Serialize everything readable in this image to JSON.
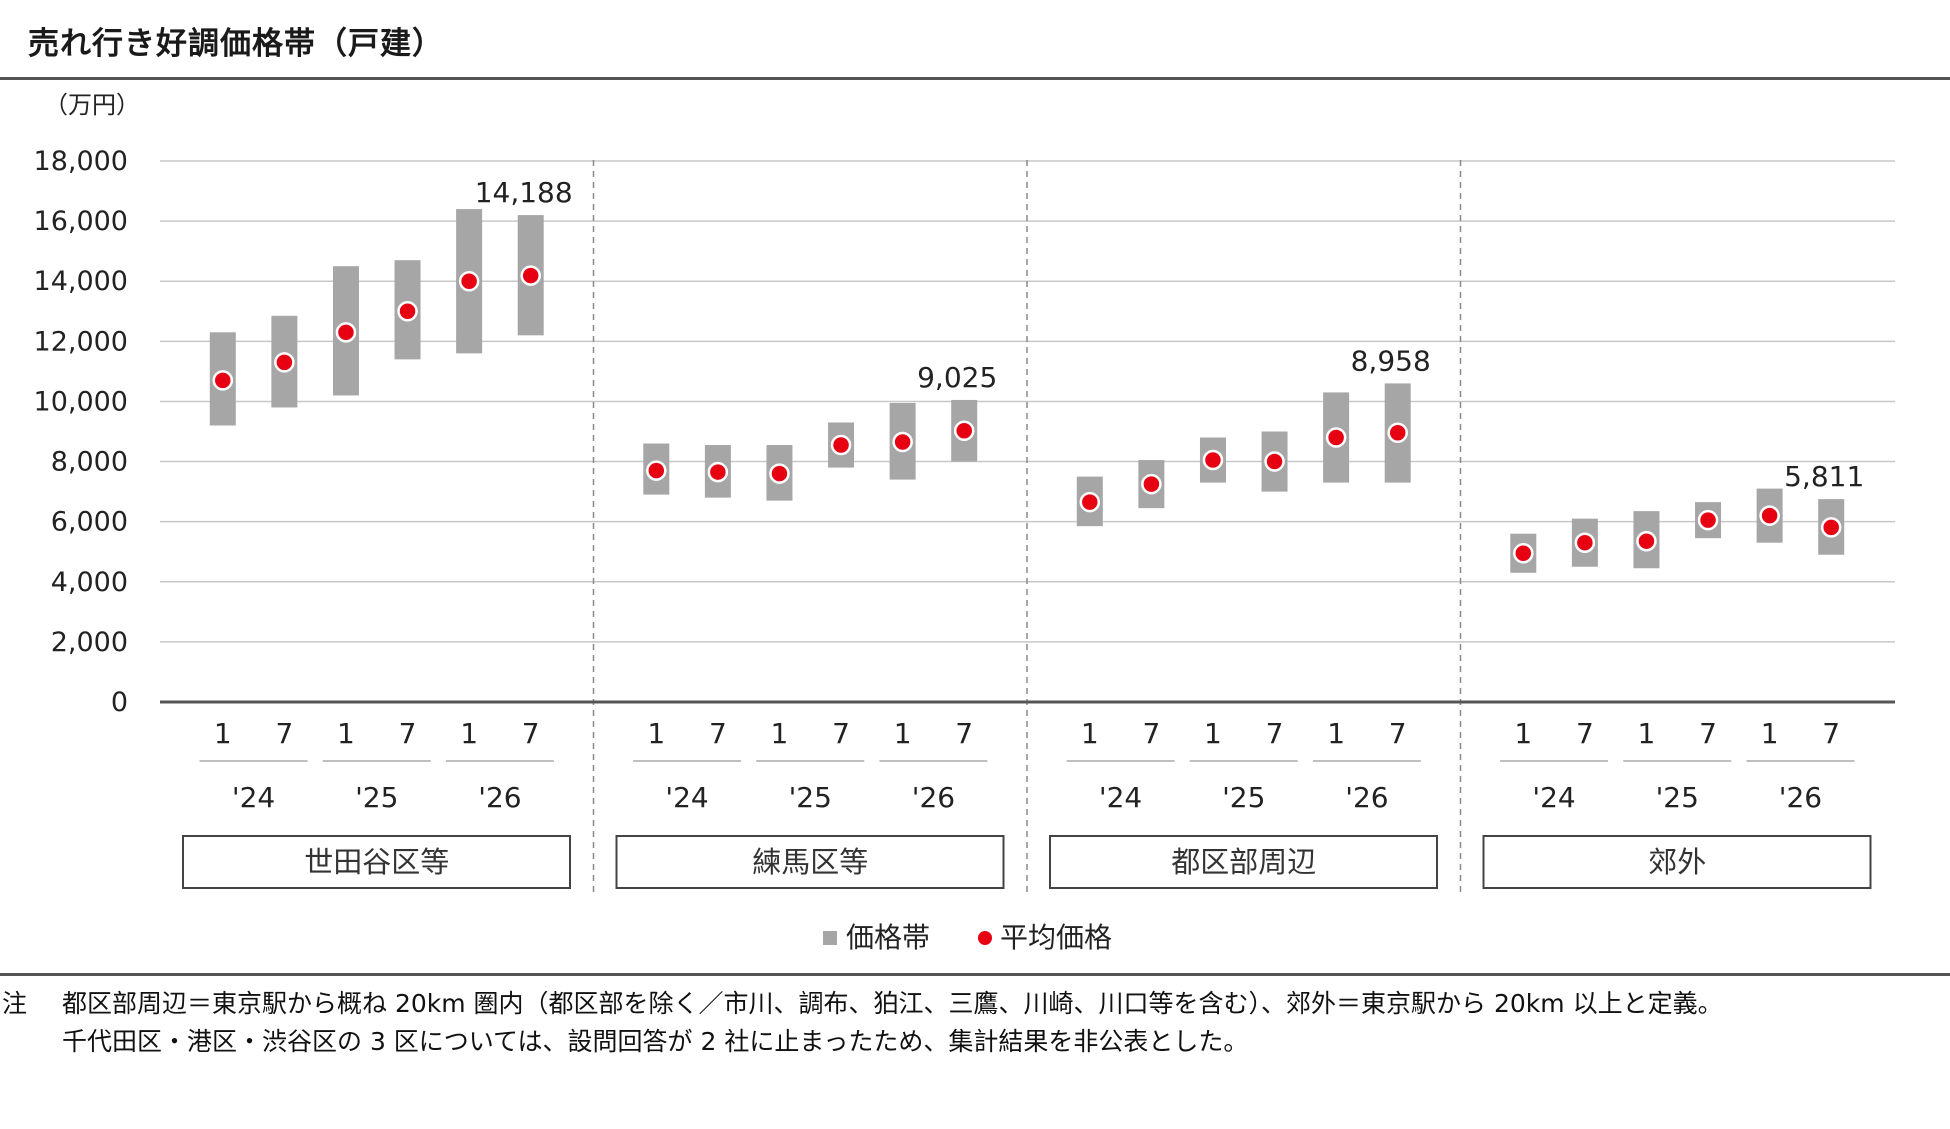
{
  "title": "売れ行き好調価格帯（戸建）",
  "chart_data": {
    "type": "range_dot",
    "unit_label": "（万円）",
    "ylim": [
      0,
      18000
    ],
    "yticks": [
      "18,000",
      "16,000",
      "14,000",
      "12,000",
      "10,000",
      "8,000",
      "6,000",
      "4,000",
      "2,000",
      "0"
    ],
    "ytick_values": [
      18000,
      16000,
      14000,
      12000,
      10000,
      8000,
      6000,
      4000,
      2000,
      0
    ],
    "grid": true,
    "legend": {
      "position": "bottom",
      "range_label": "価格帯",
      "avg_label": "平均価格"
    },
    "colors": {
      "range": "#a6a6a6",
      "avg": "#e60012",
      "grid": "#c8c8c8",
      "axis": "#555555",
      "group_box": "#444444"
    },
    "groups": [
      {
        "name": "世田谷区等",
        "years": [
          "'24",
          "'25",
          "'26"
        ],
        "months": [
          "1",
          "7",
          "1",
          "7",
          "1",
          "7"
        ],
        "highlight_label": "14,188",
        "points": [
          {
            "low": 9200,
            "high": 12300,
            "avg": 10700
          },
          {
            "low": 9800,
            "high": 12850,
            "avg": 11300
          },
          {
            "low": 10200,
            "high": 14500,
            "avg": 12300
          },
          {
            "low": 11400,
            "high": 14700,
            "avg": 13000
          },
          {
            "low": 11600,
            "high": 16400,
            "avg": 14000
          },
          {
            "low": 12200,
            "high": 16200,
            "avg": 14188
          }
        ]
      },
      {
        "name": "練馬区等",
        "years": [
          "'24",
          "'25",
          "'26"
        ],
        "months": [
          "1",
          "7",
          "1",
          "7",
          "1",
          "7"
        ],
        "highlight_label": "9,025",
        "points": [
          {
            "low": 6900,
            "high": 8600,
            "avg": 7700
          },
          {
            "low": 6800,
            "high": 8550,
            "avg": 7650
          },
          {
            "low": 6700,
            "high": 8550,
            "avg": 7600
          },
          {
            "low": 7800,
            "high": 9300,
            "avg": 8550
          },
          {
            "low": 7400,
            "high": 9950,
            "avg": 8650
          },
          {
            "low": 8000,
            "high": 10050,
            "avg": 9025
          }
        ]
      },
      {
        "name": "都区部周辺",
        "years": [
          "'24",
          "'25",
          "'26"
        ],
        "months": [
          "1",
          "7",
          "1",
          "7",
          "1",
          "7"
        ],
        "highlight_label": "8,958",
        "points": [
          {
            "low": 5850,
            "high": 7500,
            "avg": 6650
          },
          {
            "low": 6450,
            "high": 8050,
            "avg": 7250
          },
          {
            "low": 7300,
            "high": 8800,
            "avg": 8050
          },
          {
            "low": 7000,
            "high": 9000,
            "avg": 8000
          },
          {
            "low": 7300,
            "high": 10300,
            "avg": 8800
          },
          {
            "low": 7300,
            "high": 10600,
            "avg": 8958
          }
        ]
      },
      {
        "name": "郊外",
        "years": [
          "'24",
          "'25",
          "'26"
        ],
        "months": [
          "1",
          "7",
          "1",
          "7",
          "1",
          "7"
        ],
        "highlight_label": "5,811",
        "points": [
          {
            "low": 4300,
            "high": 5600,
            "avg": 4950
          },
          {
            "low": 4500,
            "high": 6100,
            "avg": 5300
          },
          {
            "low": 4450,
            "high": 6350,
            "avg": 5350
          },
          {
            "low": 5450,
            "high": 6650,
            "avg": 6050
          },
          {
            "low": 5300,
            "high": 7100,
            "avg": 6200
          },
          {
            "low": 4900,
            "high": 6750,
            "avg": 5811
          }
        ]
      }
    ]
  },
  "notes": {
    "mark": "注",
    "line1": "都区部周辺＝東京駅から概ね 20km 圏内（都区部を除く／市川、調布、狛江、三鷹、川崎、川口等を含む）、郊外＝東京駅から 20km 以上と定義。",
    "line2": "千代田区・港区・渋谷区の 3 区については、設問回答が 2 社に止まったため、集計結果を非公表とした。"
  }
}
